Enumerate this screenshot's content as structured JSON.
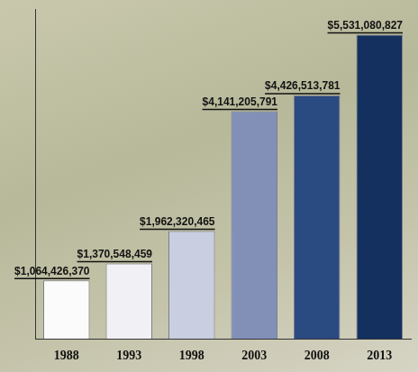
{
  "chart_data": {
    "type": "bar",
    "categories": [
      "1988",
      "1993",
      "1998",
      "2003",
      "2008",
      "2013"
    ],
    "values": [
      1064426370,
      1370548459,
      1962320465,
      4141205791,
      4426513781,
      5531080827
    ],
    "value_labels": [
      "$1,064,426,370",
      "$1,370,548,459",
      "$1,962,320,465",
      "$4,141,205,791",
      "$4,426,513,781",
      "$5,531,080,827"
    ],
    "colors": [
      "#fbfbfb",
      "#f1f1f5",
      "#c9cfe0",
      "#8290b8",
      "#2a4a82",
      "#13305f"
    ],
    "ylim": [
      0,
      6000000000
    ],
    "grid": false,
    "data_labels": true,
    "tick_labels": "x"
  }
}
